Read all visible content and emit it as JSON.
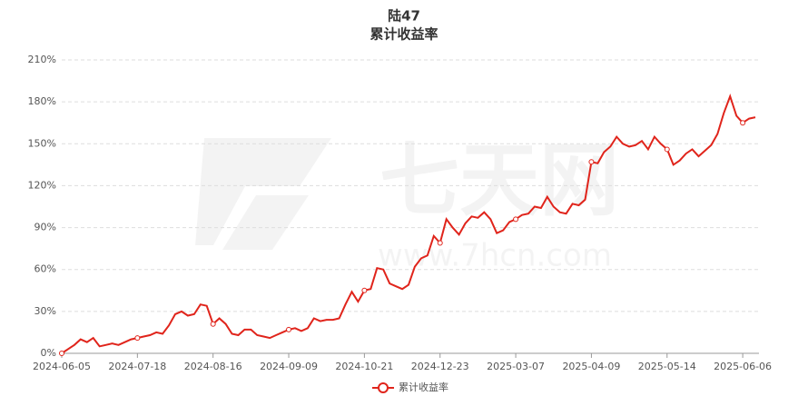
{
  "chart_data": {
    "type": "line",
    "title": "陆47",
    "subtitle": "累计收益率",
    "watermark": [
      "七天网",
      "www.7hcn.com"
    ],
    "categories": [
      "2024-06-05",
      null,
      null,
      null,
      null,
      null,
      null,
      null,
      null,
      null,
      null,
      null,
      "2024-07-18",
      null,
      null,
      null,
      null,
      null,
      null,
      null,
      null,
      null,
      null,
      null,
      "2024-08-16",
      null,
      null,
      null,
      null,
      null,
      null,
      null,
      null,
      null,
      null,
      null,
      "2024-09-09",
      null,
      null,
      null,
      null,
      null,
      null,
      null,
      null,
      null,
      null,
      null,
      "2024-10-21",
      null,
      null,
      null,
      null,
      null,
      null,
      null,
      null,
      null,
      null,
      null,
      "2024-12-23",
      null,
      null,
      null,
      null,
      null,
      null,
      null,
      null,
      null,
      null,
      null,
      "2025-03-07",
      null,
      null,
      null,
      null,
      null,
      null,
      null,
      null,
      null,
      null,
      null,
      "2025-04-09",
      null,
      null,
      null,
      null,
      null,
      null,
      null,
      null,
      null,
      null,
      null,
      "2025-05-14",
      null,
      null,
      null,
      null,
      null,
      null,
      null,
      null,
      null,
      null,
      null,
      "2025-06-06",
      null,
      null
    ],
    "series": [
      {
        "name": "累计收益率",
        "color": "#e0241b",
        "values": [
          0,
          3,
          6,
          10,
          8,
          11,
          5,
          6,
          7,
          6,
          8,
          10,
          11,
          12,
          13,
          15,
          14,
          20,
          28,
          30,
          27,
          28,
          35,
          34,
          21,
          25,
          21,
          14,
          13,
          17,
          17,
          13,
          12,
          11,
          13,
          15,
          17,
          18,
          16,
          18,
          25,
          23,
          24,
          24,
          25,
          35,
          44,
          37,
          45,
          46,
          61,
          60,
          50,
          48,
          46,
          49,
          62,
          68,
          70,
          84,
          79,
          96,
          90,
          85,
          93,
          98,
          97,
          101,
          96,
          86,
          88,
          94,
          96,
          99,
          100,
          105,
          104,
          112,
          105,
          101,
          100,
          107,
          106,
          110,
          137,
          136,
          144,
          148,
          155,
          150,
          148,
          149,
          152,
          146,
          155,
          150,
          146,
          135,
          138,
          143,
          146,
          141,
          145,
          149,
          157,
          172,
          184,
          170,
          165,
          168,
          169
        ]
      }
    ],
    "ylim": [
      0,
      210
    ],
    "yticks": [
      {
        "value": 0,
        "label": "0%"
      },
      {
        "value": 30,
        "label": "30%"
      },
      {
        "value": 60,
        "label": "60%"
      },
      {
        "value": 90,
        "label": "90%"
      },
      {
        "value": 120,
        "label": "120%"
      },
      {
        "value": 150,
        "label": "150%"
      },
      {
        "value": 180,
        "label": "180%"
      },
      {
        "value": 210,
        "label": "210%"
      }
    ],
    "grid": true,
    "legend": "bottom"
  }
}
